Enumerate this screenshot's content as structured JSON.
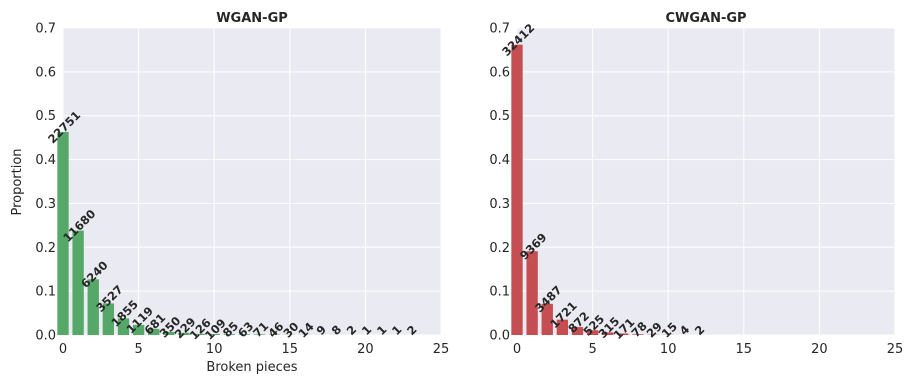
{
  "chart_data": [
    {
      "type": "bar",
      "title": "WGAN-GP",
      "xlabel": "Broken pieces",
      "ylabel": "Proportion",
      "xlim": [
        0,
        25
      ],
      "ylim": [
        0,
        0.7
      ],
      "xticks": [
        "0",
        "5",
        "10",
        "15",
        "20",
        "25"
      ],
      "yticks": [
        "0.0",
        "0.1",
        "0.2",
        "0.3",
        "0.4",
        "0.5",
        "0.6",
        "0.7"
      ],
      "grid": true,
      "color": "#55a868",
      "x": [
        0,
        1,
        2,
        3,
        4,
        5,
        6,
        7,
        8,
        9,
        10,
        11,
        12,
        13,
        14,
        15,
        16,
        17,
        18,
        19,
        20,
        21,
        22,
        23
      ],
      "values": [
        0.463,
        0.238,
        0.127,
        0.072,
        0.038,
        0.023,
        0.014,
        0.007,
        0.005,
        0.0026,
        0.0022,
        0.0017,
        0.0013,
        0.0014,
        0.0009,
        0.0006,
        0.0003,
        0.0002,
        0.0002,
        0.0,
        0.0,
        0.0,
        0.0,
        0.0
      ],
      "labels": [
        "22751",
        "11680",
        "6240",
        "3527",
        "1855",
        "1119",
        "681",
        "350",
        "229",
        "126",
        "109",
        "85",
        "63",
        "71",
        "46",
        "30",
        "14",
        "9",
        "8",
        "2",
        "1",
        "1",
        "1",
        "2"
      ]
    },
    {
      "type": "bar",
      "title": "CWGAN-GP",
      "xlabel": "",
      "ylabel": "",
      "xlim": [
        0,
        25
      ],
      "ylim": [
        0,
        0.7
      ],
      "xticks": [
        "0",
        "5",
        "10",
        "15",
        "20",
        "25"
      ],
      "yticks": [
        "0.0",
        "0.1",
        "0.2",
        "0.3",
        "0.4",
        "0.5",
        "0.6",
        "0.7"
      ],
      "grid": true,
      "color": "#c44e52",
      "x": [
        0,
        1,
        2,
        3,
        4,
        5,
        6,
        7,
        8,
        9,
        10,
        11,
        12
      ],
      "values": [
        0.662,
        0.191,
        0.071,
        0.035,
        0.018,
        0.011,
        0.006,
        0.0035,
        0.0016,
        0.0006,
        0.0003,
        0.0001,
        0.0
      ],
      "labels": [
        "32412",
        "9369",
        "3487",
        "1721",
        "872",
        "525",
        "315",
        "171",
        "78",
        "29",
        "15",
        "4",
        "2"
      ]
    }
  ]
}
